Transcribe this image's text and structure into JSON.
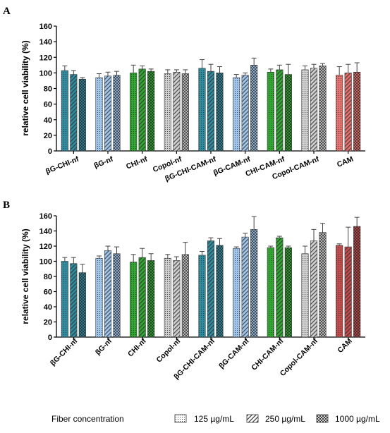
{
  "chart_data": [
    {
      "type": "bar",
      "panel": "A",
      "ylabel": "relative cell viability (%)",
      "ylim": [
        0,
        160
      ],
      "yticks": [
        "0",
        "20",
        "40",
        "60",
        "80",
        "100",
        "120",
        "140",
        "160"
      ],
      "categories": [
        "βG-CHI-nf",
        "βG-nf",
        "CHI-nf",
        "Copol-nf",
        "βG-CHI-CAM-nf",
        "βG-CAM-nf",
        "CHI-CAM-nf",
        "Copol-CAM-nf",
        "CAM"
      ],
      "series": [
        {
          "name": "125 µg/mL",
          "values": [
            103,
            94,
            100,
            99,
            106,
            94,
            101,
            104,
            97
          ],
          "errors": [
            6,
            5,
            10,
            5,
            11,
            4,
            4,
            5,
            11
          ]
        },
        {
          "name": "250 µg/mL",
          "values": [
            98,
            96,
            105,
            101,
            102,
            97,
            104,
            106,
            100
          ],
          "errors": [
            5,
            5,
            4,
            3,
            9,
            3,
            6,
            5,
            11
          ]
        },
        {
          "name": "1000 µg/mL",
          "values": [
            92,
            97,
            102,
            99,
            100,
            110,
            98,
            109,
            101
          ],
          "errors": [
            2,
            5,
            3,
            5,
            8,
            9,
            13,
            3,
            12
          ]
        }
      ]
    },
    {
      "type": "bar",
      "panel": "B",
      "ylabel": "relative cell viability (%)",
      "ylim": [
        0,
        160
      ],
      "yticks": [
        "0",
        "20",
        "40",
        "60",
        "80",
        "100",
        "120",
        "140",
        "160"
      ],
      "categories": [
        "βG-CHI-nf",
        "βG-nf",
        "CHI-nf",
        "Copol-nf",
        "βG-CHI-CAM-nf",
        "βG-CAM-nf",
        "CHI-CAM-nf",
        "Copol-CAM-nf",
        "CAM"
      ],
      "series": [
        {
          "name": "125 µg/mL",
          "values": [
            100,
            104,
            99,
            104,
            108,
            117,
            118,
            110,
            121
          ],
          "errors": [
            5,
            3,
            10,
            5,
            5,
            2,
            2,
            10,
            2
          ]
        },
        {
          "name": "250 µg/mL",
          "values": [
            97,
            114,
            105,
            101,
            127,
            132,
            131,
            127,
            119
          ],
          "errors": [
            8,
            6,
            12,
            5,
            4,
            5,
            2,
            15,
            26
          ]
        },
        {
          "name": "1000 µg/mL",
          "values": [
            85,
            110,
            101,
            109,
            121,
            142,
            118,
            138,
            146
          ],
          "errors": [
            11,
            9,
            9,
            16,
            9,
            17,
            2,
            12,
            12
          ]
        }
      ]
    }
  ],
  "legend": {
    "title": "Fiber concentration",
    "items": [
      "125 µg/mL",
      "250 µg/mL",
      "1000 µg/mL"
    ]
  },
  "colors": {
    "groups": [
      "#2e8ca0",
      "#9fc6ec",
      "#2ea82e",
      "#cfcfcf",
      "#2e8ca0",
      "#9fc6ec",
      "#2ea82e",
      "#cfcfcf",
      "#e8706c"
    ],
    "dark_variant": [
      "#2e8ca0",
      "#9fc6ec",
      "#2ea82e",
      "#cfcfcf",
      "#2e8ca0",
      "#9fc6ec",
      "#2ea82e",
      "#cfcfcf",
      "#c44a4a"
    ]
  }
}
